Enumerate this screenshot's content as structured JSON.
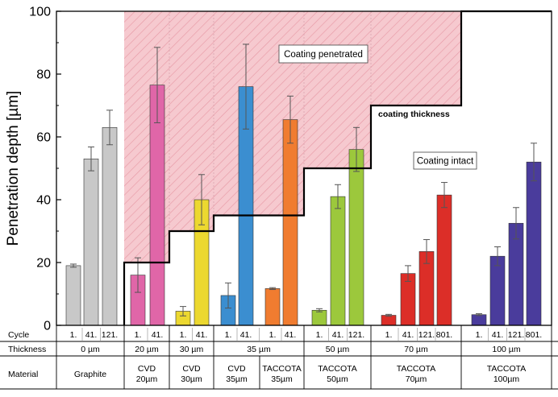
{
  "chart_data": {
    "type": "bar",
    "ylabel": "Penetration depth [µm]",
    "ylim": [
      0,
      100
    ],
    "yticks": [
      0,
      20,
      40,
      60,
      80,
      100
    ],
    "row_labels": {
      "cycle": "Cycle",
      "thickness": "Thickness",
      "material": "Material"
    },
    "groups": [
      {
        "thickness": "0 µm",
        "coating_thickness": null,
        "bars": [
          {
            "cycle": "1.",
            "value": 19.0,
            "error": 0.5,
            "color": "#c8c8c8"
          },
          {
            "cycle": "41.",
            "value": 53.0,
            "error": 3.8,
            "color": "#c8c8c8"
          },
          {
            "cycle": "121.",
            "value": 63.0,
            "error": 5.5,
            "color": "#c8c8c8"
          }
        ]
      },
      {
        "thickness": "20 µm",
        "coating_thickness": 20,
        "bars": [
          {
            "cycle": "1.",
            "value": 16.0,
            "error": 5.5,
            "color": "#e066a8"
          },
          {
            "cycle": "41.",
            "value": 76.5,
            "error": 12.0,
            "color": "#e066a8"
          }
        ]
      },
      {
        "thickness": "30 µm",
        "coating_thickness": 30,
        "bars": [
          {
            "cycle": "1.",
            "value": 4.5,
            "error": 1.5,
            "color": "#ecd830"
          },
          {
            "cycle": "41.",
            "value": 40.0,
            "error": 8.0,
            "color": "#ecd830"
          }
        ]
      },
      {
        "thickness": "35 µm",
        "coating_thickness": 35,
        "bars": [
          {
            "cycle": "1.",
            "value": 9.5,
            "error": 4.0,
            "color": "#3b8ed0"
          },
          {
            "cycle": "41.",
            "value": 76.0,
            "error": 13.5,
            "color": "#3b8ed0"
          },
          {
            "cycle": "1.",
            "value": 11.7,
            "error": 0.3,
            "color": "#f07c30"
          },
          {
            "cycle": "41.",
            "value": 65.5,
            "error": 7.5,
            "color": "#f07c30"
          }
        ]
      },
      {
        "thickness": "50 µm",
        "coating_thickness": 50,
        "bars": [
          {
            "cycle": "1.",
            "value": 4.8,
            "error": 0.5,
            "color": "#9cc83c"
          },
          {
            "cycle": "41.",
            "value": 41.0,
            "error": 3.8,
            "color": "#9cc83c"
          },
          {
            "cycle": "121.",
            "value": 56.0,
            "error": 7.0,
            "color": "#9cc83c"
          }
        ]
      },
      {
        "thickness": "70 µm",
        "coating_thickness": 70,
        "bars": [
          {
            "cycle": "1.",
            "value": 3.2,
            "error": 0.3,
            "color": "#dc2e28"
          },
          {
            "cycle": "41.",
            "value": 16.5,
            "error": 2.5,
            "color": "#dc2e28"
          },
          {
            "cycle": "121.",
            "value": 23.5,
            "error": 3.8,
            "color": "#dc2e28"
          },
          {
            "cycle": "801.",
            "value": 41.5,
            "error": 4.0,
            "color": "#dc2e28"
          }
        ]
      },
      {
        "thickness": "100 µm",
        "coating_thickness": 100,
        "bars": [
          {
            "cycle": "1.",
            "value": 3.4,
            "error": 0.3,
            "color": "#4a3c9c"
          },
          {
            "cycle": "41.",
            "value": 22.0,
            "error": 3.0,
            "color": "#4a3c9c"
          },
          {
            "cycle": "121.",
            "value": 32.5,
            "error": 5.0,
            "color": "#4a3c9c"
          },
          {
            "cycle": "801.",
            "value": 52.0,
            "error": 6.0,
            "color": "#4a3c9c"
          }
        ]
      }
    ],
    "materials": [
      {
        "lines": [
          "Graphite"
        ]
      },
      {
        "lines": [
          "CVD",
          "20µm"
        ]
      },
      {
        "lines": [
          "CVD",
          "30µm"
        ]
      },
      {
        "lines": [
          "CVD",
          "35µm"
        ]
      },
      {
        "lines": [
          "TACCOTA",
          "35µm"
        ]
      },
      {
        "lines": [
          "TACCOTA",
          "50µm"
        ]
      },
      {
        "lines": [
          "TACCOTA",
          "70µm"
        ]
      },
      {
        "lines": [
          "TACCOTA",
          "100µm"
        ]
      }
    ],
    "annotations": {
      "penetrated": "Coating penetrated",
      "intact": "Coating intact",
      "coating_line": "coating thickness"
    },
    "colors": {
      "region_fill": "#f6c9cf",
      "hatch": "#e89aa6",
      "step_line": "#000000",
      "error_bar": "#555555"
    }
  }
}
